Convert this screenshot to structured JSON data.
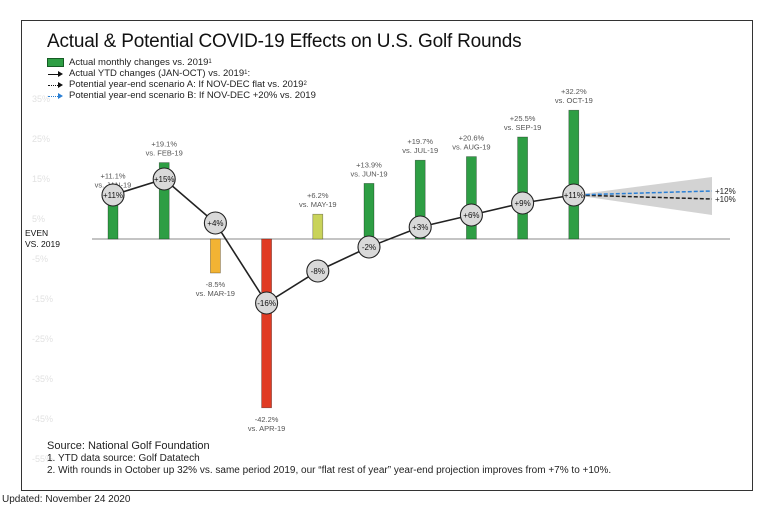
{
  "title": "Actual & Potential COVID-19 Effects on U.S. Golf Rounds",
  "legend": {
    "monthly_text": "Actual monthly changes vs. 2019",
    "monthly_sup": "1",
    "ytd_text": "Actual YTD changes (JAN-OCT) vs. 2019",
    "ytd_sup": "1",
    "ytd_suffix": ":",
    "scenario_a_text": "Potential year-end scenario A: If NOV-DEC flat vs. 2019",
    "scenario_a_sup": "2",
    "scenario_b_text": "Potential year-end scenario B: If NOV-DEC +20% vs. 2019"
  },
  "colors": {
    "positive_bar": "#2e9e44",
    "neutral_bar": "#c9d35a",
    "march_bar": "#f2b333",
    "april_bar": "#e03b24",
    "ytd_line": "#222222",
    "marker_fill": "#d9d9d9",
    "scenario_a": "#222222",
    "scenario_b": "#2a7fd4",
    "projection_band": "#d3d3d3",
    "faint_tick": "#e2e2e2"
  },
  "chart_data": {
    "type": "bar",
    "y_ticks": [
      "35%",
      "25%",
      "15%",
      "5%",
      "-5%",
      "-15%",
      "-25%",
      "-35%",
      "-45%",
      "-55%"
    ],
    "y_tick_values": [
      35,
      25,
      15,
      5,
      -5,
      -15,
      -25,
      -35,
      -45,
      -55
    ],
    "zero_label_line1": "EVEN",
    "zero_label_line2": "VS. 2019",
    "ylim": [
      -57,
      37
    ],
    "months": [
      {
        "label": "vs. JAN-19",
        "value": 11.1,
        "value_text": "+11.1%",
        "ytd": 11,
        "ytd_text": "+11%",
        "color_key": "positive_bar"
      },
      {
        "label": "vs. FEB-19",
        "value": 19.1,
        "value_text": "+19.1%",
        "ytd": 15,
        "ytd_text": "+15%",
        "color_key": "positive_bar"
      },
      {
        "label": "vs. MAR-19",
        "value": -8.5,
        "value_text": "-8.5%",
        "ytd": 4,
        "ytd_text": "+4%",
        "color_key": "march_bar"
      },
      {
        "label": "vs. APR-19",
        "value": -42.2,
        "value_text": "-42.2%",
        "ytd": -16,
        "ytd_text": "-16%",
        "color_key": "april_bar"
      },
      {
        "label": "vs. MAY-19",
        "value": 6.2,
        "value_text": "+6.2%",
        "ytd": -8,
        "ytd_text": "-8%",
        "color_key": "neutral_bar"
      },
      {
        "label": "vs. JUN-19",
        "value": 13.9,
        "value_text": "+13.9%",
        "ytd": -2,
        "ytd_text": "-2%",
        "color_key": "positive_bar"
      },
      {
        "label": "vs. JUL-19",
        "value": 19.7,
        "value_text": "+19.7%",
        "ytd": 3,
        "ytd_text": "+3%",
        "color_key": "positive_bar"
      },
      {
        "label": "vs. AUG-19",
        "value": 20.6,
        "value_text": "+20.6%",
        "ytd": 6,
        "ytd_text": "+6%",
        "color_key": "positive_bar"
      },
      {
        "label": "vs. SEP-19",
        "value": 25.5,
        "value_text": "+25.5%",
        "ytd": 9,
        "ytd_text": "+9%",
        "color_key": "positive_bar"
      },
      {
        "label": "vs. OCT-19",
        "value": 32.2,
        "value_text": "+32.2%",
        "ytd": 11,
        "ytd_text": "+11%",
        "color_key": "positive_bar"
      }
    ],
    "scenarios": [
      {
        "value": 10,
        "value_text": "+10%",
        "color_key": "scenario_a"
      },
      {
        "value": 12,
        "value_text": "+12%",
        "color_key": "scenario_b"
      }
    ]
  },
  "source": {
    "title": "Source: National Golf Foundation",
    "note1": "1. YTD data source: Golf Datatech",
    "note2": "2. With rounds in October up 32% vs. same period 2019, our “flat rest of year” year-end projection improves from +7% to +10%."
  },
  "updated": "Updated: November 24 2020"
}
